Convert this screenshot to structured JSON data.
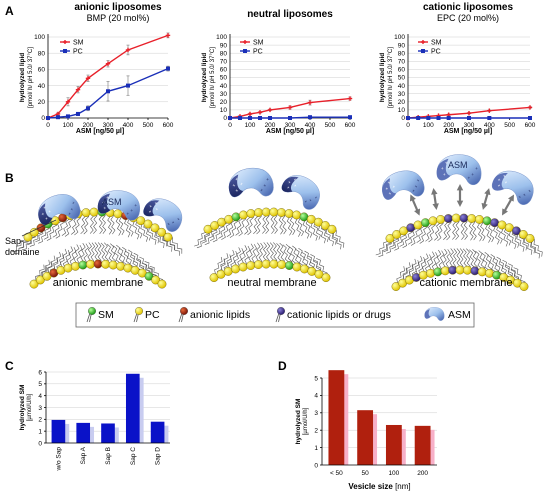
{
  "panel_labels": {
    "a": "A",
    "b": "B",
    "c": "C",
    "d": "D"
  },
  "colors": {
    "sm": "#e8202a",
    "pc": "#1a2fb8",
    "bar_c": "#0a12c8",
    "bar_d": "#b0200e",
    "bar_d_bg": "#f7b0c8"
  },
  "chart_data": [
    {
      "type": "line",
      "title": "anionic liposomes",
      "subtitle": "BMP (20 mol%)",
      "xlabel": "ASM [ng/50 µl]",
      "ylabel": "hydrolyzed lipid",
      "ylabel2": "[pmol/ h/ pH 5.0/ 37°C]",
      "xlim": [
        0,
        600
      ],
      "ylim": [
        0,
        100
      ],
      "xticks": [
        "0",
        "100",
        "200",
        "300",
        "400",
        "500",
        "600"
      ],
      "yticks": [
        "0",
        "20",
        "40",
        "60",
        "80",
        "100"
      ],
      "series": [
        {
          "name": "SM",
          "x": [
            0,
            50,
            100,
            150,
            200,
            300,
            400,
            600
          ],
          "y": [
            0,
            5,
            20,
            35,
            49,
            67,
            84,
            102
          ],
          "err": [
            0,
            2,
            5,
            4,
            4,
            4,
            6,
            3
          ]
        },
        {
          "name": "PC",
          "x": [
            0,
            50,
            100,
            150,
            200,
            300,
            400,
            600
          ],
          "y": [
            0,
            1,
            2,
            5,
            12,
            33,
            40,
            61
          ],
          "err": [
            0,
            1,
            1,
            2,
            3,
            12,
            12,
            3
          ]
        }
      ]
    },
    {
      "type": "line",
      "title": "neutral liposomes",
      "subtitle": "",
      "xlabel": "ASM [ng/50 µl]",
      "ylabel": "hydrolyzed lipid",
      "ylabel2": "[pmol/ h/ pH 5.0/ 37°C]",
      "xlim": [
        0,
        600
      ],
      "ylim": [
        0,
        100
      ],
      "xticks": [
        "0",
        "100",
        "200",
        "300",
        "400",
        "500",
        "600"
      ],
      "yticks": [
        "0",
        "10",
        "20",
        "30",
        "40",
        "50",
        "60",
        "70",
        "80",
        "90",
        "100"
      ],
      "series": [
        {
          "name": "SM",
          "x": [
            0,
            50,
            100,
            150,
            200,
            300,
            400,
            600
          ],
          "y": [
            0,
            2,
            5,
            7,
            10,
            13,
            19,
            24
          ],
          "err": [
            0,
            1,
            1,
            1,
            1,
            2,
            3,
            2
          ]
        },
        {
          "name": "PC",
          "x": [
            0,
            50,
            100,
            150,
            200,
            300,
            400,
            600
          ],
          "y": [
            0,
            0,
            0,
            0,
            0,
            0,
            1,
            1
          ],
          "err": [
            0,
            0,
            0,
            0,
            0,
            0,
            0,
            0
          ]
        }
      ]
    },
    {
      "type": "line",
      "title": "cationic liposomes",
      "subtitle": "EPC (20 mol%)",
      "xlabel": "ASM [ng/50 µl]",
      "ylabel": "hydrolyzed lipid",
      "ylabel2": "[pmol/ h/ pH 5.0/ 37°C]",
      "xlim": [
        0,
        600
      ],
      "ylim": [
        0,
        100
      ],
      "xticks": [
        "0",
        "100",
        "200",
        "300",
        "400",
        "500",
        "600"
      ],
      "yticks": [
        "0",
        "10",
        "20",
        "30",
        "40",
        "50",
        "60",
        "70",
        "80",
        "90",
        "100"
      ],
      "series": [
        {
          "name": "SM",
          "x": [
            0,
            50,
            100,
            150,
            200,
            300,
            400,
            600
          ],
          "y": [
            0,
            1,
            2,
            3,
            4,
            6,
            9,
            13
          ],
          "err": [
            0,
            0,
            0,
            0,
            1,
            1,
            1,
            1
          ]
        },
        {
          "name": "PC",
          "x": [
            0,
            50,
            100,
            150,
            200,
            300,
            400,
            600
          ],
          "y": [
            0,
            0,
            0,
            0,
            0,
            0,
            0,
            0
          ],
          "err": [
            0,
            0,
            0,
            0,
            0,
            0,
            0,
            0
          ]
        }
      ]
    },
    {
      "type": "bar",
      "title": "",
      "xlabel": "",
      "ylabel": "hydrolyzed SM",
      "ylabel2": "[µmol/U/h]",
      "ylim": [
        0,
        6
      ],
      "yticks": [
        "0",
        "1",
        "2",
        "3",
        "4",
        "5",
        "6"
      ],
      "categories": [
        "w/o Sap",
        "Sap A",
        "Sap B",
        "Sap C",
        "Sap D"
      ],
      "values": [
        1.95,
        1.7,
        1.65,
        5.85,
        1.8
      ]
    },
    {
      "type": "bar",
      "title": "",
      "xlabel": "Vesicle size",
      "xlabel_unit": "[nm]",
      "ylabel": "hydrolyzed SM",
      "ylabel2": "[µmol/U/h]",
      "ylim": [
        0,
        5
      ],
      "yticks": [
        "0",
        "1",
        "2",
        "3",
        "4",
        "5"
      ],
      "categories": [
        "< 50",
        "50",
        "100",
        "200"
      ],
      "values": [
        5.45,
        3.15,
        2.3,
        2.25
      ]
    }
  ],
  "diagram": {
    "membranes": [
      "anionic membrane",
      "neutral membrane",
      "cationic membrane"
    ],
    "asm_label": "ASM",
    "sap_label_1": "Sap-",
    "sap_label_2": "domaine",
    "legend": {
      "sm": "SM",
      "pc": "PC",
      "anionic": "anionic lipids",
      "cationic": "cationic lipids or drugs",
      "asm": "ASM"
    }
  }
}
